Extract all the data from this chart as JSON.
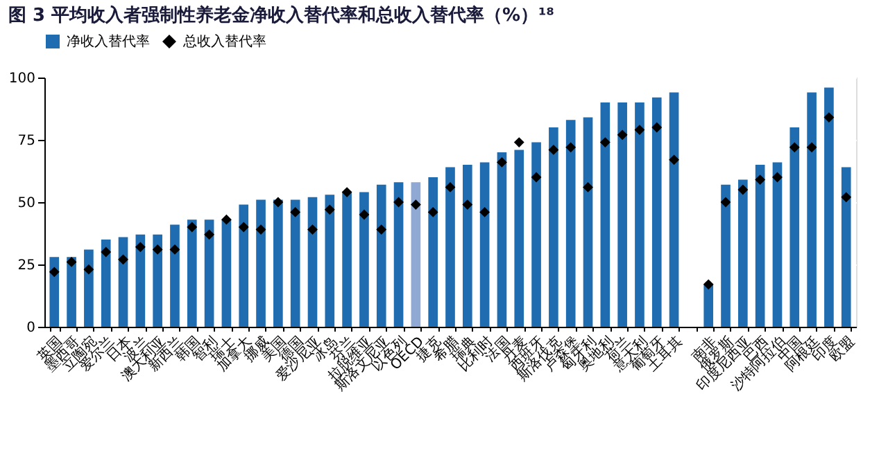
{
  "chart_data": {
    "type": "bar",
    "title": "图 3 平均收入者强制性养老金净收入替代率和总收入替代率（%）¹⁸",
    "categories": [
      "英国",
      "墨西哥",
      "立陶宛",
      "爱尔兰",
      "日本",
      "波兰",
      "澳大利亚",
      "新西兰",
      "韩国",
      "智利",
      "瑞士",
      "加拿大",
      "挪威",
      "美国",
      "德国",
      "爱沙尼亚",
      "冰岛",
      "芬兰",
      "拉脱维亚",
      "斯洛文尼亚",
      "以色列",
      "OECD",
      "捷克",
      "希腊",
      "瑞典",
      "比利时",
      "法国",
      "丹麦",
      "西班牙",
      "斯洛伐克",
      "卢森堡",
      "匈牙利",
      "奥地利",
      "荷兰",
      "意大利",
      "葡萄牙",
      "土耳其",
      null,
      "南非",
      "俄罗斯",
      "印度尼西亚",
      "巴西",
      "沙特阿拉伯",
      "中国",
      "阿根廷",
      "印度",
      "欧盟"
    ],
    "series": [
      {
        "name": "净收入替代率",
        "color": "#1f6cb0",
        "colors": [
          "#1f6cb0",
          "#1f6cb0",
          "#1f6cb0",
          "#1f6cb0",
          "#1f6cb0",
          "#1f6cb0",
          "#1f6cb0",
          "#1f6cb0",
          "#1f6cb0",
          "#1f6cb0",
          "#1f6cb0",
          "#1f6cb0",
          "#1f6cb0",
          "#1f6cb0",
          "#1f6cb0",
          "#1f6cb0",
          "#1f6cb0",
          "#1f6cb0",
          "#1f6cb0",
          "#1f6cb0",
          "#1f6cb0",
          "#8fa9d4",
          "#1f6cb0",
          "#1f6cb0",
          "#1f6cb0",
          "#1f6cb0",
          "#1f6cb0",
          "#1f6cb0",
          "#1f6cb0",
          "#1f6cb0",
          "#1f6cb0",
          "#1f6cb0",
          "#1f6cb0",
          "#1f6cb0",
          "#1f6cb0",
          "#1f6cb0",
          "#1f6cb0",
          "#1f6cb0",
          "#1f6cb0",
          "#1f6cb0",
          "#1f6cb0",
          "#1f6cb0",
          "#1f6cb0",
          "#1f6cb0",
          "#1f6cb0",
          "#1f6cb0",
          "#1f6cb0"
        ],
        "values": [
          28,
          28,
          31,
          35,
          36,
          37,
          37,
          41,
          43,
          43,
          43,
          49,
          51,
          51,
          51,
          52,
          53,
          54,
          54,
          57,
          58,
          58,
          60,
          64,
          65,
          66,
          70,
          71,
          74,
          80,
          83,
          84,
          90,
          90,
          90,
          92,
          94,
          null,
          17,
          57,
          59,
          65,
          66,
          80,
          94,
          96,
          64
        ]
      },
      {
        "name": "总收入替代率",
        "type": "scatter",
        "color": "#000000",
        "marker": "diamond",
        "values": [
          22,
          26,
          23,
          30,
          27,
          32,
          31,
          31,
          40,
          37,
          43,
          40,
          39,
          50,
          46,
          39,
          47,
          54,
          45,
          39,
          50,
          49,
          46,
          56,
          49,
          46,
          66,
          74,
          60,
          71,
          72,
          56,
          74,
          77,
          79,
          80,
          67,
          null,
          17,
          50,
          55,
          59,
          60,
          72,
          72,
          84,
          52
        ]
      }
    ],
    "ylim": [
      0,
      100
    ],
    "yticks": [
      0,
      25,
      50,
      75,
      100
    ],
    "grid": true,
    "legend": "top"
  }
}
